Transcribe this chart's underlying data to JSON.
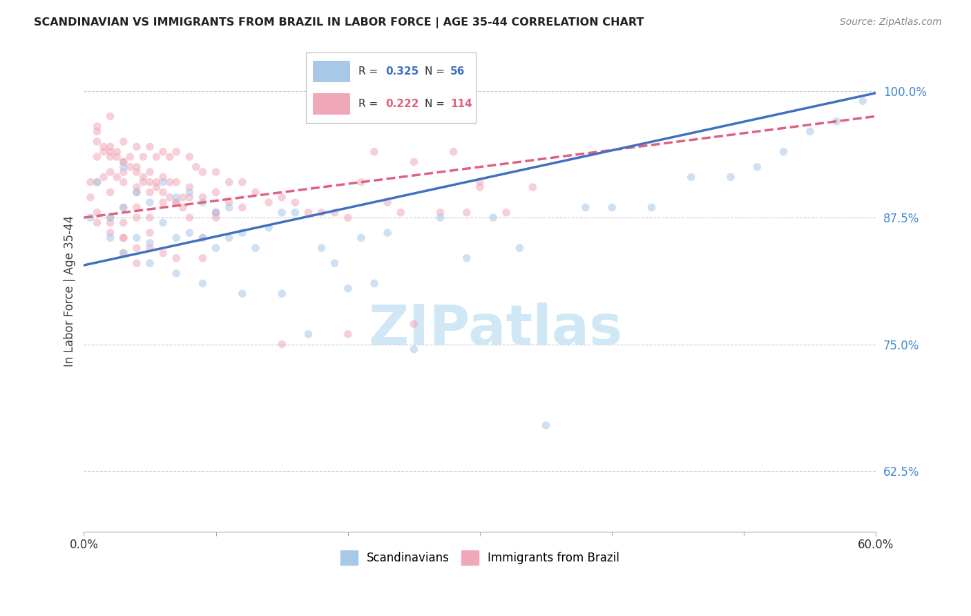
{
  "title": "SCANDINAVIAN VS IMMIGRANTS FROM BRAZIL IN LABOR FORCE | AGE 35-44 CORRELATION CHART",
  "source": "Source: ZipAtlas.com",
  "ylabel": "In Labor Force | Age 35-44",
  "xlim": [
    0.0,
    0.6
  ],
  "ylim": [
    0.565,
    1.04
  ],
  "xticks": [
    0.0,
    0.1,
    0.2,
    0.3,
    0.4,
    0.5,
    0.6
  ],
  "xticklabels": [
    "0.0%",
    "",
    "",
    "",
    "",
    "",
    "60.0%"
  ],
  "yticks": [
    0.625,
    0.75,
    0.875,
    1.0
  ],
  "yticklabels": [
    "62.5%",
    "75.0%",
    "87.5%",
    "100.0%"
  ],
  "grid_color": "#cccccc",
  "background_color": "#ffffff",
  "watermark": "ZIPatlas",
  "watermark_color": "#d0e8f5",
  "blue_color": "#a8c8e8",
  "pink_color": "#f0a8b8",
  "blue_line_color": "#4070c0",
  "pink_line_color": "#e06080",
  "scatter_alpha": 0.55,
  "marker_size": 70,
  "scandinavians_x": [
    0.005,
    0.01,
    0.02,
    0.02,
    0.03,
    0.03,
    0.04,
    0.04,
    0.05,
    0.05,
    0.06,
    0.06,
    0.07,
    0.07,
    0.08,
    0.08,
    0.09,
    0.09,
    0.1,
    0.1,
    0.11,
    0.11,
    0.12,
    0.13,
    0.14,
    0.15,
    0.16,
    0.17,
    0.18,
    0.19,
    0.2,
    0.21,
    0.22,
    0.23,
    0.25,
    0.27,
    0.29,
    0.31,
    0.33,
    0.35,
    0.38,
    0.4,
    0.43,
    0.46,
    0.49,
    0.51,
    0.53,
    0.55,
    0.57,
    0.59,
    0.03,
    0.05,
    0.07,
    0.09,
    0.12,
    0.15
  ],
  "scandinavians_y": [
    0.875,
    0.91,
    0.875,
    0.855,
    0.925,
    0.885,
    0.9,
    0.855,
    0.89,
    0.85,
    0.91,
    0.87,
    0.895,
    0.855,
    0.9,
    0.86,
    0.89,
    0.855,
    0.88,
    0.845,
    0.885,
    0.855,
    0.86,
    0.845,
    0.865,
    0.88,
    0.88,
    0.76,
    0.845,
    0.83,
    0.805,
    0.855,
    0.81,
    0.86,
    0.745,
    0.875,
    0.835,
    0.875,
    0.845,
    0.67,
    0.885,
    0.885,
    0.885,
    0.915,
    0.915,
    0.925,
    0.94,
    0.96,
    0.97,
    0.99,
    0.84,
    0.83,
    0.82,
    0.81,
    0.8,
    0.8
  ],
  "brazil_x": [
    0.005,
    0.005,
    0.01,
    0.01,
    0.01,
    0.01,
    0.015,
    0.015,
    0.02,
    0.02,
    0.02,
    0.02,
    0.025,
    0.025,
    0.03,
    0.03,
    0.03,
    0.03,
    0.03,
    0.035,
    0.04,
    0.04,
    0.04,
    0.04,
    0.045,
    0.045,
    0.05,
    0.05,
    0.05,
    0.05,
    0.055,
    0.055,
    0.06,
    0.06,
    0.065,
    0.065,
    0.07,
    0.07,
    0.075,
    0.08,
    0.08,
    0.085,
    0.09,
    0.09,
    0.1,
    0.1,
    0.1,
    0.11,
    0.11,
    0.12,
    0.12,
    0.13,
    0.14,
    0.15,
    0.16,
    0.17,
    0.18,
    0.19,
    0.2,
    0.21,
    0.22,
    0.23,
    0.24,
    0.25,
    0.27,
    0.28,
    0.29,
    0.3,
    0.32,
    0.34,
    0.01,
    0.02,
    0.03,
    0.04,
    0.05,
    0.06,
    0.07,
    0.08,
    0.09,
    0.1,
    0.01,
    0.02,
    0.03,
    0.04,
    0.05,
    0.06,
    0.07,
    0.08,
    0.09,
    0.1,
    0.15,
    0.2,
    0.25,
    0.3,
    0.02,
    0.03,
    0.04,
    0.02,
    0.03,
    0.04,
    0.01,
    0.015,
    0.02,
    0.025,
    0.03,
    0.035,
    0.04,
    0.045,
    0.05,
    0.055,
    0.06,
    0.065,
    0.07,
    0.075
  ],
  "brazil_y": [
    0.91,
    0.895,
    0.96,
    0.935,
    0.91,
    0.88,
    0.94,
    0.915,
    0.945,
    0.92,
    0.9,
    0.875,
    0.94,
    0.915,
    0.95,
    0.93,
    0.91,
    0.885,
    0.87,
    0.935,
    0.945,
    0.925,
    0.905,
    0.875,
    0.935,
    0.91,
    0.945,
    0.92,
    0.9,
    0.875,
    0.935,
    0.91,
    0.94,
    0.915,
    0.935,
    0.91,
    0.94,
    0.91,
    0.895,
    0.935,
    0.905,
    0.925,
    0.92,
    0.895,
    0.92,
    0.9,
    0.88,
    0.91,
    0.89,
    0.91,
    0.885,
    0.9,
    0.89,
    0.895,
    0.89,
    0.88,
    0.88,
    0.88,
    0.875,
    0.91,
    0.94,
    0.89,
    0.88,
    0.93,
    0.88,
    0.94,
    0.88,
    0.905,
    0.88,
    0.905,
    0.87,
    0.86,
    0.855,
    0.845,
    0.845,
    0.84,
    0.89,
    0.875,
    0.835,
    0.88,
    0.965,
    0.975,
    0.855,
    0.885,
    0.86,
    0.89,
    0.835,
    0.895,
    0.855,
    0.875,
    0.75,
    0.76,
    0.77,
    0.91,
    0.87,
    0.84,
    0.83,
    0.935,
    0.92,
    0.9,
    0.95,
    0.945,
    0.94,
    0.935,
    0.93,
    0.925,
    0.92,
    0.915,
    0.91,
    0.905,
    0.9,
    0.895,
    0.89,
    0.885
  ]
}
